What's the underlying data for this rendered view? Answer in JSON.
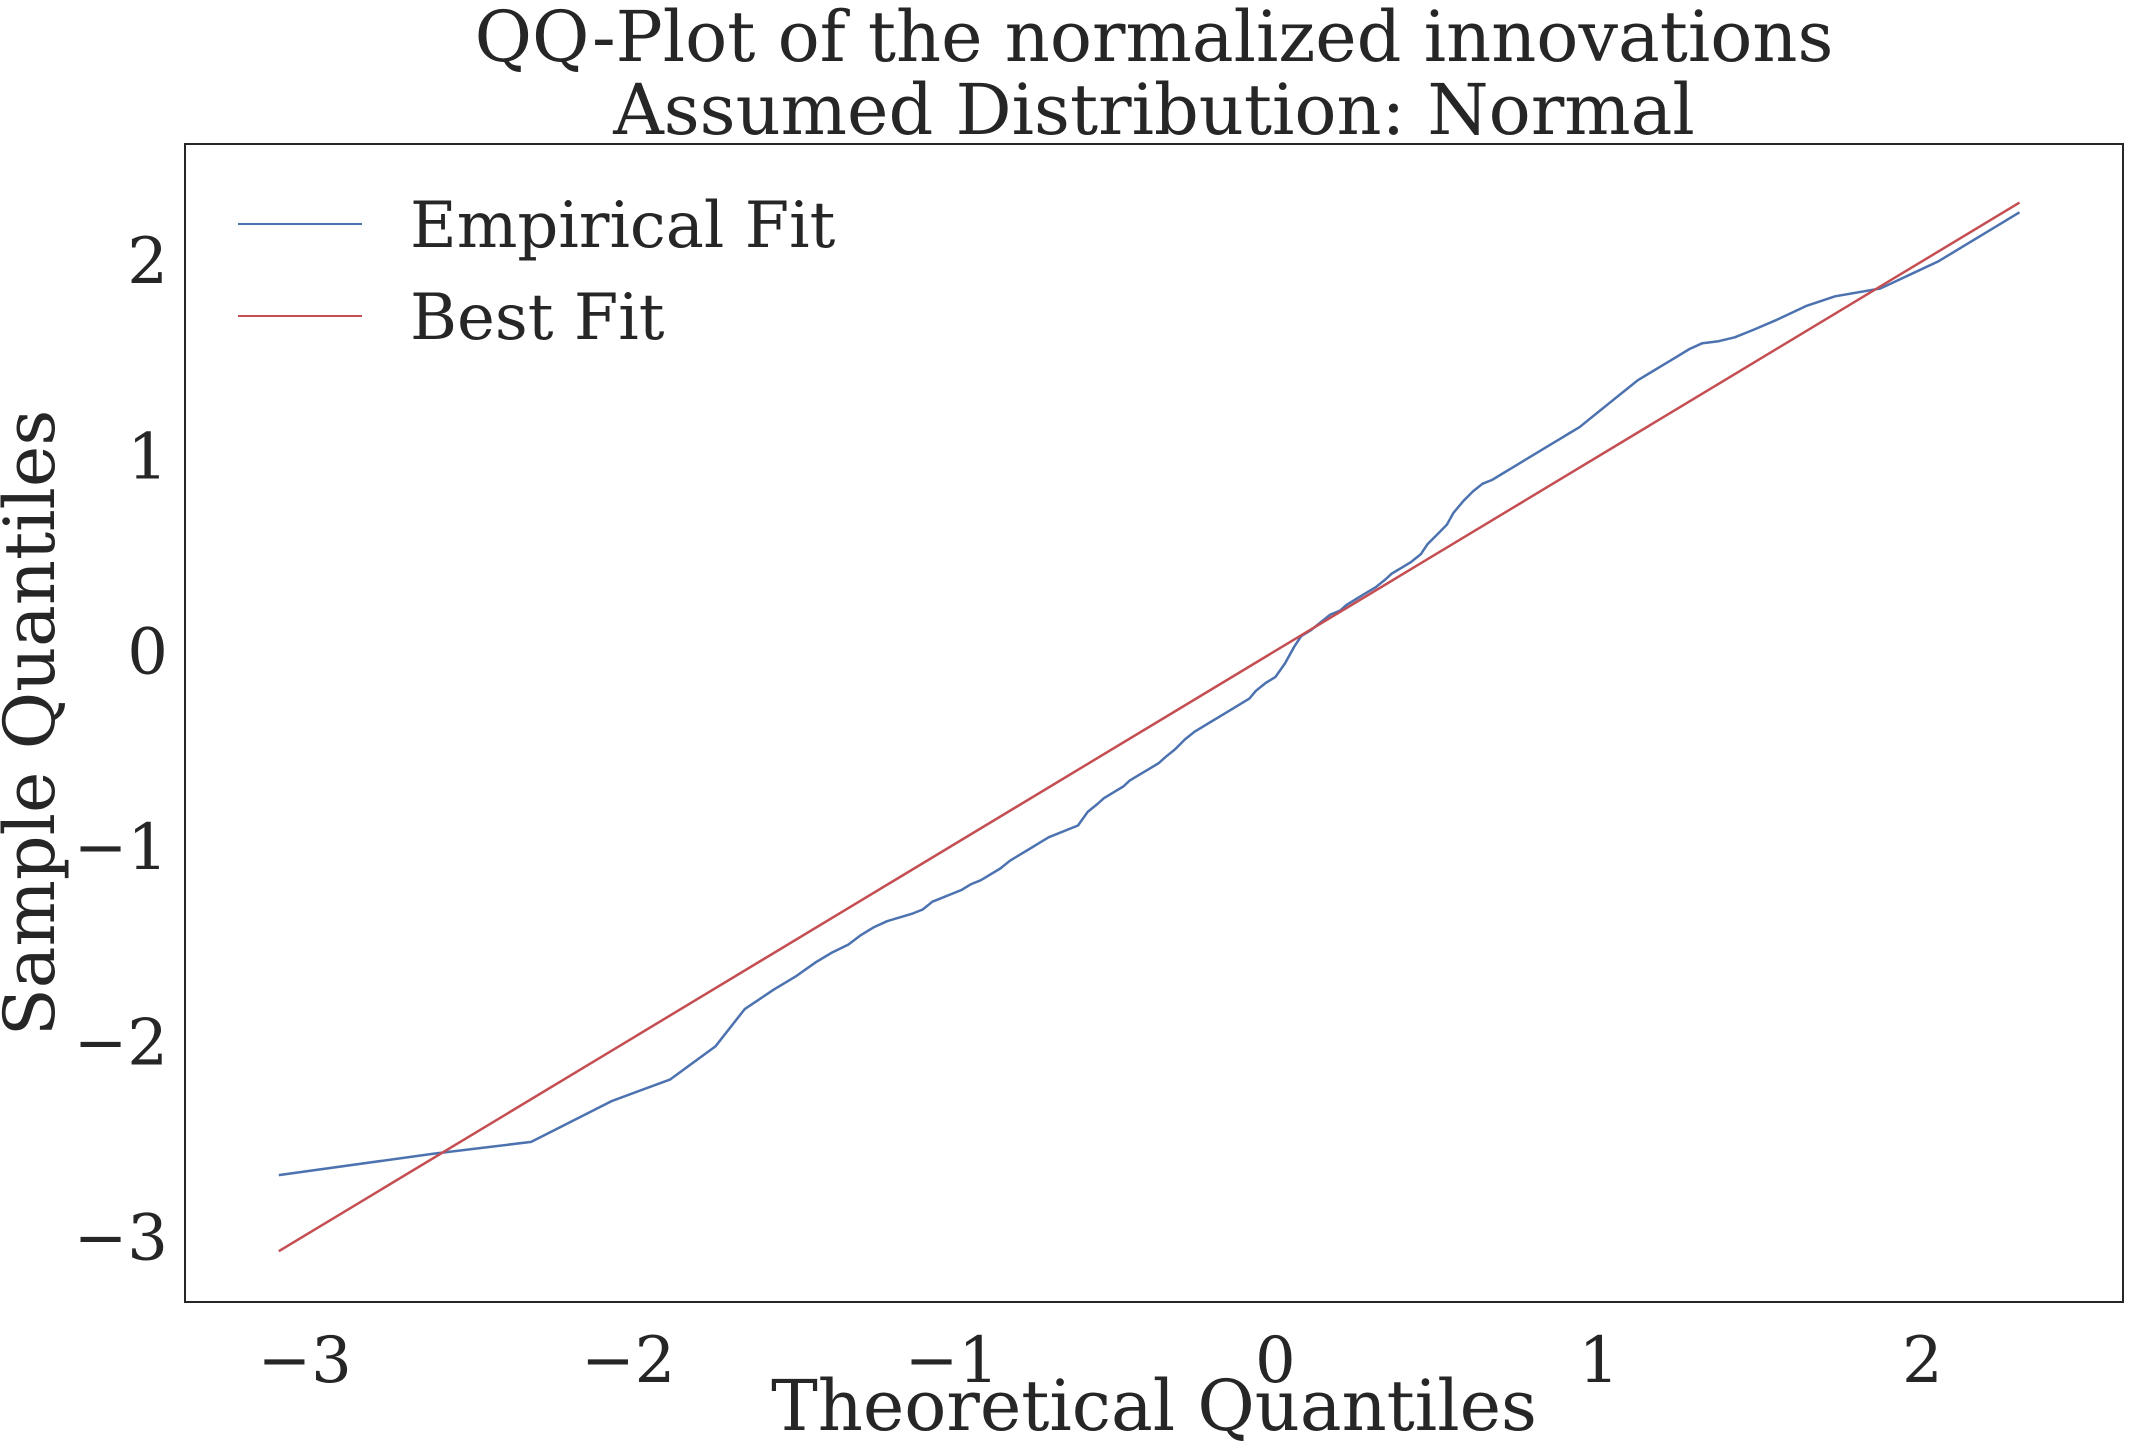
{
  "chart_data": {
    "type": "line",
    "title": "QQ-Plot of the normalized innovations",
    "subtitle": "Assumed Distribution: Normal",
    "xlabel": "Theoretical Quantiles",
    "ylabel": "Sample Quantiles",
    "xlim": [
      -3.37,
      2.62
    ],
    "ylim": [
      -3.33,
      2.6
    ],
    "xticks": [
      -3,
      -2,
      -1,
      0,
      1,
      2
    ],
    "yticks": [
      -3,
      -2,
      -1,
      0,
      1,
      2
    ],
    "xtick_labels": [
      "−3",
      "−2",
      "−1",
      "0",
      "1",
      "2"
    ],
    "ytick_labels": [
      "−3",
      "−2",
      "−1",
      "0",
      "1",
      "2"
    ],
    "grid": false,
    "legend": {
      "position": "top-left",
      "entries": [
        "Empirical Fit",
        "Best Fit"
      ]
    },
    "series": [
      {
        "name": "Empirical Fit",
        "color": "#4c72b0",
        "x": [
          -3.08,
          -2.6,
          -2.3,
          -2.05,
          -1.87,
          -1.73,
          -1.64,
          -1.55,
          -1.48,
          -1.42,
          -1.37,
          -1.32,
          -1.28,
          -1.24,
          -1.2,
          -1.16,
          -1.12,
          -1.09,
          -1.06,
          -1.03,
          -1.0,
          -0.97,
          -0.94,
          -0.91,
          -0.88,
          -0.85,
          -0.82,
          -0.79,
          -0.76,
          -0.73,
          -0.7,
          -0.67,
          -0.64,
          -0.61,
          -0.58,
          -0.55,
          -0.53,
          -0.5,
          -0.47,
          -0.45,
          -0.42,
          -0.39,
          -0.36,
          -0.34,
          -0.31,
          -0.28,
          -0.25,
          -0.22,
          -0.2,
          -0.17,
          -0.14,
          -0.11,
          -0.08,
          -0.06,
          -0.03,
          0.0,
          0.03,
          0.06,
          0.08,
          0.11,
          0.14,
          0.17,
          0.2,
          0.22,
          0.25,
          0.28,
          0.31,
          0.34,
          0.36,
          0.39,
          0.42,
          0.45,
          0.47,
          0.5,
          0.53,
          0.55,
          0.58,
          0.61,
          0.64,
          0.67,
          0.7,
          0.73,
          0.76,
          0.79,
          0.82,
          0.85,
          0.88,
          0.91,
          0.94,
          0.97,
          1.0,
          1.03,
          1.06,
          1.09,
          1.12,
          1.16,
          1.2,
          1.24,
          1.28,
          1.32,
          1.37,
          1.42,
          1.48,
          1.55,
          1.64,
          1.73,
          1.87,
          2.05,
          2.3
        ],
        "y": [
          -2.68,
          -2.57,
          -2.51,
          -2.3,
          -2.19,
          -2.02,
          -1.83,
          -1.73,
          -1.66,
          -1.59,
          -1.54,
          -1.5,
          -1.45,
          -1.41,
          -1.38,
          -1.36,
          -1.34,
          -1.32,
          -1.28,
          -1.26,
          -1.24,
          -1.22,
          -1.19,
          -1.17,
          -1.14,
          -1.11,
          -1.07,
          -1.04,
          -1.01,
          -0.98,
          -0.95,
          -0.93,
          -0.91,
          -0.89,
          -0.82,
          -0.78,
          -0.75,
          -0.72,
          -0.69,
          -0.66,
          -0.63,
          -0.6,
          -0.57,
          -0.54,
          -0.5,
          -0.45,
          -0.41,
          -0.38,
          -0.36,
          -0.33,
          -0.3,
          -0.27,
          -0.24,
          -0.2,
          -0.16,
          -0.13,
          -0.06,
          0.03,
          0.08,
          0.11,
          0.15,
          0.19,
          0.21,
          0.24,
          0.27,
          0.3,
          0.33,
          0.37,
          0.4,
          0.43,
          0.46,
          0.5,
          0.55,
          0.6,
          0.65,
          0.71,
          0.77,
          0.82,
          0.86,
          0.88,
          0.91,
          0.94,
          0.97,
          1.0,
          1.03,
          1.06,
          1.09,
          1.12,
          1.15,
          1.19,
          1.23,
          1.27,
          1.31,
          1.35,
          1.39,
          1.43,
          1.47,
          1.51,
          1.55,
          1.58,
          1.59,
          1.61,
          1.65,
          1.7,
          1.77,
          1.82,
          1.86,
          2.0,
          2.25
        ],
        "y_full": null
      },
      {
        "name": "Best Fit",
        "color": "#c44e52",
        "x": [
          -3.08,
          2.3
        ],
        "y": [
          -3.07,
          2.3
        ]
      }
    ]
  }
}
